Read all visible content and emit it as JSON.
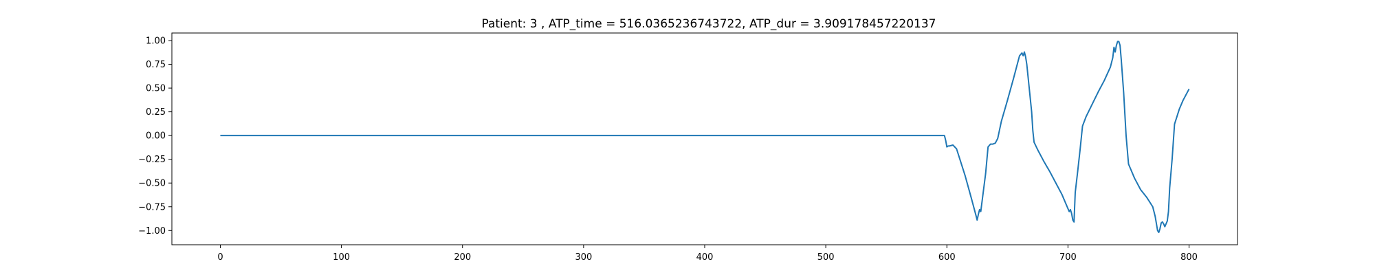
{
  "chart_data": {
    "type": "line",
    "title": "Patient: 3 , ATP_time = 516.0365236743722, ATP_dur = 3.909178457220137",
    "xlabel": "",
    "ylabel": "",
    "xlim": [
      -40,
      840
    ],
    "ylim": [
      -1.15,
      1.08
    ],
    "x_ticks": [
      0,
      100,
      200,
      300,
      400,
      500,
      600,
      700,
      800
    ],
    "x_tick_labels": [
      "0",
      "100",
      "200",
      "300",
      "400",
      "500",
      "600",
      "700",
      "800"
    ],
    "y_ticks": [
      1.0,
      0.75,
      0.5,
      0.25,
      0.0,
      -0.25,
      -0.5,
      -0.75,
      -1.0
    ],
    "y_tick_labels": [
      "1.00",
      "0.75",
      "0.50",
      "0.25",
      "0.00",
      "−0.25",
      "−0.50",
      "−0.75",
      "−1.00"
    ],
    "grid": false,
    "line_color": "#1f77b4",
    "series": [
      {
        "x": [
          0,
          100,
          200,
          300,
          400,
          500,
          598,
          599,
          600,
          601,
          602,
          605,
          608,
          610,
          615,
          620,
          624,
          625,
          626,
          627,
          628,
          630,
          632,
          634,
          636,
          638,
          640,
          642,
          645,
          650,
          655,
          660,
          662,
          663,
          664,
          665,
          666,
          668,
          670,
          671,
          672,
          675,
          680,
          685,
          690,
          695,
          700,
          701,
          702,
          703,
          704,
          705,
          706,
          708,
          710,
          712,
          715,
          720,
          725,
          730,
          735,
          737,
          738,
          739,
          740,
          741,
          742,
          743,
          744,
          746,
          748,
          750,
          752,
          755,
          760,
          765,
          770,
          772,
          774,
          775,
          776,
          777,
          778,
          779,
          780,
          782,
          783,
          784,
          786,
          788,
          790,
          792,
          795,
          800
        ],
        "y": [
          0.0,
          0.0,
          0.0,
          0.0,
          0.0,
          0.0,
          0.0,
          -0.05,
          -0.12,
          -0.11,
          -0.11,
          -0.1,
          -0.14,
          -0.22,
          -0.42,
          -0.65,
          -0.84,
          -0.89,
          -0.83,
          -0.78,
          -0.8,
          -0.6,
          -0.4,
          -0.12,
          -0.09,
          -0.09,
          -0.08,
          -0.03,
          0.15,
          0.37,
          0.6,
          0.84,
          0.87,
          0.84,
          0.88,
          0.83,
          0.75,
          0.5,
          0.25,
          0.05,
          -0.07,
          -0.15,
          -0.27,
          -0.38,
          -0.5,
          -0.62,
          -0.77,
          -0.8,
          -0.78,
          -0.82,
          -0.89,
          -0.91,
          -0.6,
          -0.38,
          -0.15,
          0.1,
          0.2,
          0.33,
          0.46,
          0.58,
          0.72,
          0.82,
          0.93,
          0.88,
          0.95,
          0.99,
          0.99,
          0.95,
          0.8,
          0.45,
          0.0,
          -0.3,
          -0.36,
          -0.45,
          -0.57,
          -0.65,
          -0.75,
          -0.85,
          -1.0,
          -1.02,
          -0.98,
          -0.92,
          -0.91,
          -0.93,
          -0.96,
          -0.9,
          -0.8,
          -0.55,
          -0.25,
          0.12,
          0.2,
          0.28,
          0.37,
          0.49
        ]
      }
    ]
  }
}
